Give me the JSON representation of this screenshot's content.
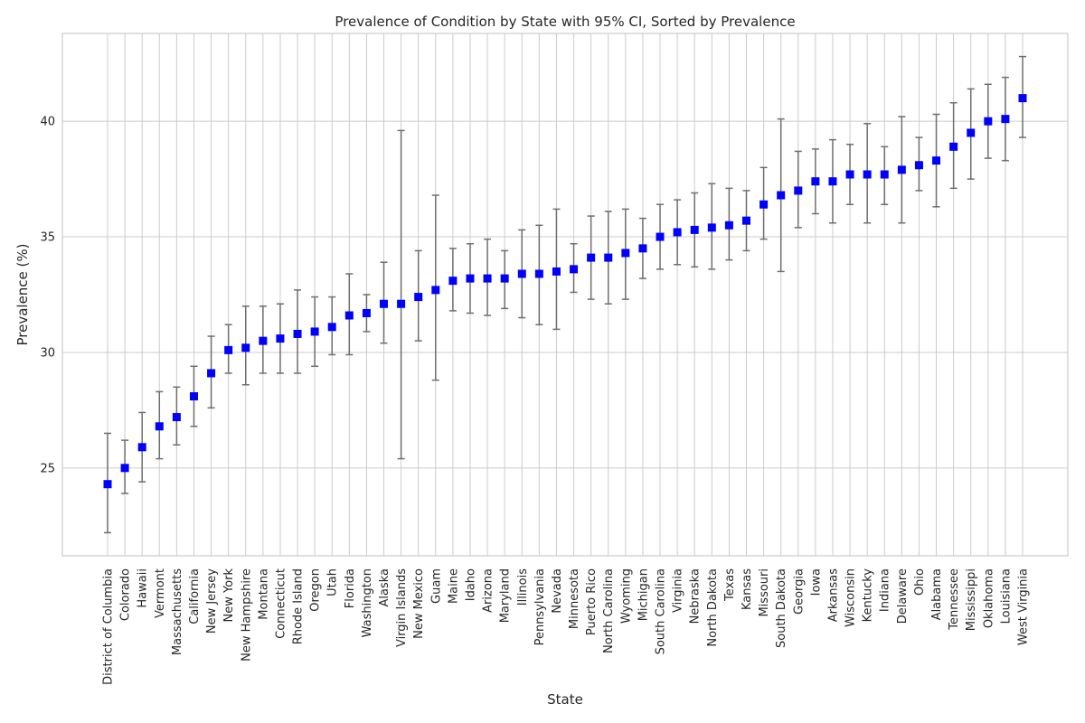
{
  "chart_data": {
    "type": "scatter",
    "title": "Prevalence of Condition by State with 95% CI, Sorted by Prevalence",
    "xlabel": "State",
    "ylabel": "Prevalence (%)",
    "ylim": [
      21.2,
      43.8
    ],
    "yticks": [
      25,
      30,
      35,
      40
    ],
    "grid": true,
    "marker": "square",
    "colors": {
      "point": "#0000ff",
      "errorbar": "#6e6e6e",
      "grid": "#cccccc"
    },
    "categories": [
      "District of Columbia",
      "Colorado",
      "Hawaii",
      "Vermont",
      "Massachusetts",
      "California",
      "New Jersey",
      "New York",
      "New Hampshire",
      "Montana",
      "Connecticut",
      "Rhode Island",
      "Oregon",
      "Utah",
      "Florida",
      "Washington",
      "Alaska",
      "Virgin Islands",
      "New Mexico",
      "Guam",
      "Maine",
      "Idaho",
      "Arizona",
      "Maryland",
      "Illinois",
      "Pennsylvania",
      "Nevada",
      "Minnesota",
      "Puerto Rico",
      "North Carolina",
      "Wyoming",
      "Michigan",
      "South Carolina",
      "Virginia",
      "Nebraska",
      "North Dakota",
      "Texas",
      "Kansas",
      "Missouri",
      "South Dakota",
      "Georgia",
      "Iowa",
      "Arkansas",
      "Wisconsin",
      "Kentucky",
      "Indiana",
      "Delaware",
      "Ohio",
      "Alabama",
      "Tennessee",
      "Mississippi",
      "Oklahoma",
      "Louisiana",
      "West Virginia"
    ],
    "values": [
      24.3,
      25.0,
      25.9,
      26.8,
      27.2,
      28.1,
      29.1,
      30.1,
      30.2,
      30.5,
      30.6,
      30.8,
      30.9,
      31.1,
      31.6,
      31.7,
      32.1,
      32.1,
      32.4,
      32.7,
      33.1,
      33.2,
      33.2,
      33.2,
      33.4,
      33.4,
      33.5,
      33.6,
      34.1,
      34.1,
      34.3,
      34.5,
      35.0,
      35.2,
      35.3,
      35.4,
      35.5,
      35.7,
      36.4,
      36.8,
      37.0,
      37.4,
      37.4,
      37.7,
      37.7,
      37.7,
      37.9,
      38.1,
      38.3,
      38.9,
      39.5,
      40.0,
      40.1,
      41.0
    ],
    "ci_lower": [
      22.2,
      23.9,
      24.4,
      25.4,
      26.0,
      26.8,
      27.6,
      29.1,
      28.6,
      29.1,
      29.1,
      29.1,
      29.4,
      29.9,
      29.9,
      30.9,
      30.4,
      25.4,
      30.5,
      28.8,
      31.8,
      31.7,
      31.6,
      31.9,
      31.5,
      31.2,
      31.0,
      32.6,
      32.3,
      32.1,
      32.3,
      33.2,
      33.6,
      33.8,
      33.7,
      33.6,
      34.0,
      34.4,
      34.9,
      33.5,
      35.4,
      36.0,
      35.6,
      36.4,
      35.6,
      36.4,
      35.6,
      37.0,
      36.3,
      37.1,
      37.5,
      38.4,
      38.3,
      39.3
    ],
    "ci_upper": [
      26.5,
      26.2,
      27.4,
      28.3,
      28.5,
      29.4,
      30.7,
      31.2,
      32.0,
      32.0,
      32.1,
      32.7,
      32.4,
      32.4,
      33.4,
      32.5,
      33.9,
      39.6,
      34.4,
      36.8,
      34.5,
      34.7,
      34.9,
      34.4,
      35.3,
      35.5,
      36.2,
      34.7,
      35.9,
      36.1,
      36.2,
      35.8,
      36.4,
      36.6,
      36.9,
      37.3,
      37.1,
      37.0,
      38.0,
      40.1,
      38.7,
      38.8,
      39.2,
      39.0,
      39.9,
      38.9,
      40.2,
      39.3,
      40.3,
      40.8,
      41.4,
      41.6,
      41.9,
      42.8
    ]
  }
}
